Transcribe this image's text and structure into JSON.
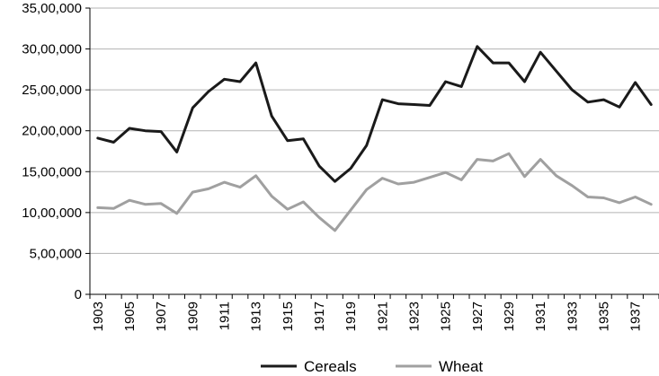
{
  "chart_data": {
    "type": "line",
    "title": "",
    "xlabel": "",
    "ylabel": "",
    "x": [
      1903,
      1904,
      1905,
      1906,
      1907,
      1908,
      1909,
      1910,
      1911,
      1912,
      1913,
      1914,
      1915,
      1916,
      1917,
      1918,
      1919,
      1920,
      1921,
      1922,
      1923,
      1924,
      1925,
      1926,
      1927,
      1928,
      1929,
      1930,
      1931,
      1932,
      1933,
      1934,
      1935,
      1936,
      1937,
      1938
    ],
    "xticks": [
      "1903",
      "1905",
      "1907",
      "1909",
      "1911",
      "1913",
      "1915",
      "1917",
      "1919",
      "1921",
      "1923",
      "1925",
      "1927",
      "1929",
      "1931",
      "1933",
      "1935",
      "1937"
    ],
    "ylim": [
      0,
      3500000
    ],
    "yticks": [
      "0",
      "5,00,000",
      "10,00,000",
      "15,00,000",
      "20,00,000",
      "25,00,000",
      "30,00,000",
      "35,00,000"
    ],
    "grid": true,
    "legend_position": "bottom",
    "series": [
      {
        "name": "Cereals",
        "color": "#1a1a1a",
        "values": [
          1910000,
          1860000,
          2030000,
          2000000,
          1990000,
          1740000,
          2280000,
          2480000,
          2630000,
          2600000,
          2830000,
          2180000,
          1880000,
          1900000,
          1570000,
          1380000,
          1540000,
          1820000,
          2380000,
          2330000,
          2320000,
          2310000,
          2600000,
          2540000,
          3030000,
          2830000,
          2830000,
          2600000,
          2960000,
          2730000,
          2500000,
          2350000,
          2380000,
          2290000,
          2590000,
          2320000
        ]
      },
      {
        "name": "Wheat",
        "color": "#a0a0a0",
        "values": [
          1060000,
          1050000,
          1150000,
          1100000,
          1110000,
          990000,
          1250000,
          1290000,
          1370000,
          1310000,
          1450000,
          1200000,
          1040000,
          1130000,
          940000,
          780000,
          1030000,
          1280000,
          1420000,
          1350000,
          1370000,
          1430000,
          1490000,
          1400000,
          1650000,
          1630000,
          1720000,
          1440000,
          1650000,
          1450000,
          1330000,
          1190000,
          1180000,
          1120000,
          1190000,
          1100000
        ]
      }
    ]
  }
}
